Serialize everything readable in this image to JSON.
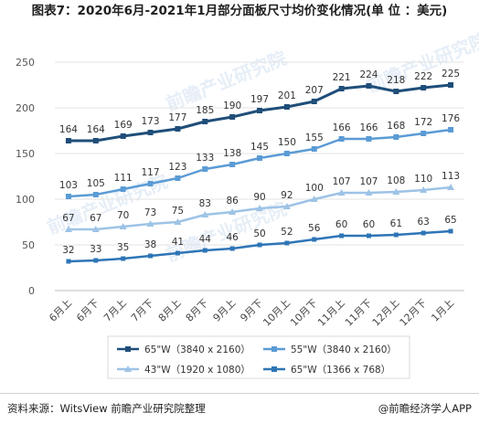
{
  "header": {
    "title": "图表7：2020年6月-2021年1月部分面板尺寸均价变化情况(单 位 ：美元)"
  },
  "footer": {
    "source": "资料来源：WitsView 前瞻产业研究院整理",
    "brand": "@前瞻经济学人APP"
  },
  "watermark": {
    "text": "前瞻产业研究院"
  },
  "chart_data": {
    "type": "line",
    "categories": [
      "6月上",
      "6月下",
      "7月上",
      "7月下",
      "8月上",
      "8月下",
      "9月上",
      "9月下",
      "10月上",
      "10月下",
      "11月上",
      "11月下",
      "12月上",
      "12月下",
      "1月上"
    ],
    "ylim": [
      0,
      250
    ],
    "yticks": [
      0,
      50,
      100,
      150,
      200,
      250
    ],
    "grid": true,
    "legend_position": "bottom",
    "series": [
      {
        "name": "65\"W（3840 x 2160）",
        "color": "#1f4e79",
        "marker": "square",
        "values": [
          164,
          164,
          169,
          173,
          177,
          185,
          190,
          197,
          201,
          207,
          221,
          224,
          218,
          222,
          225
        ]
      },
      {
        "name": "55\"W（3840 x 2160）",
        "color": "#5b9bd5",
        "marker": "square",
        "values": [
          103,
          105,
          111,
          117,
          123,
          133,
          138,
          145,
          150,
          155,
          166,
          166,
          168,
          172,
          176
        ]
      },
      {
        "name": "43\"W（1920 x 1080）",
        "color": "#9dc3e6",
        "marker": "triangle",
        "values": [
          67,
          67,
          70,
          73,
          75,
          83,
          86,
          90,
          92,
          100,
          107,
          107,
          108,
          110,
          113
        ]
      },
      {
        "name": "65\"W（1366 x 768）",
        "color": "#2e75b6",
        "marker": "square",
        "values": [
          32,
          33,
          35,
          38,
          41,
          44,
          46,
          50,
          52,
          56,
          60,
          60,
          61,
          63,
          65
        ]
      }
    ]
  }
}
